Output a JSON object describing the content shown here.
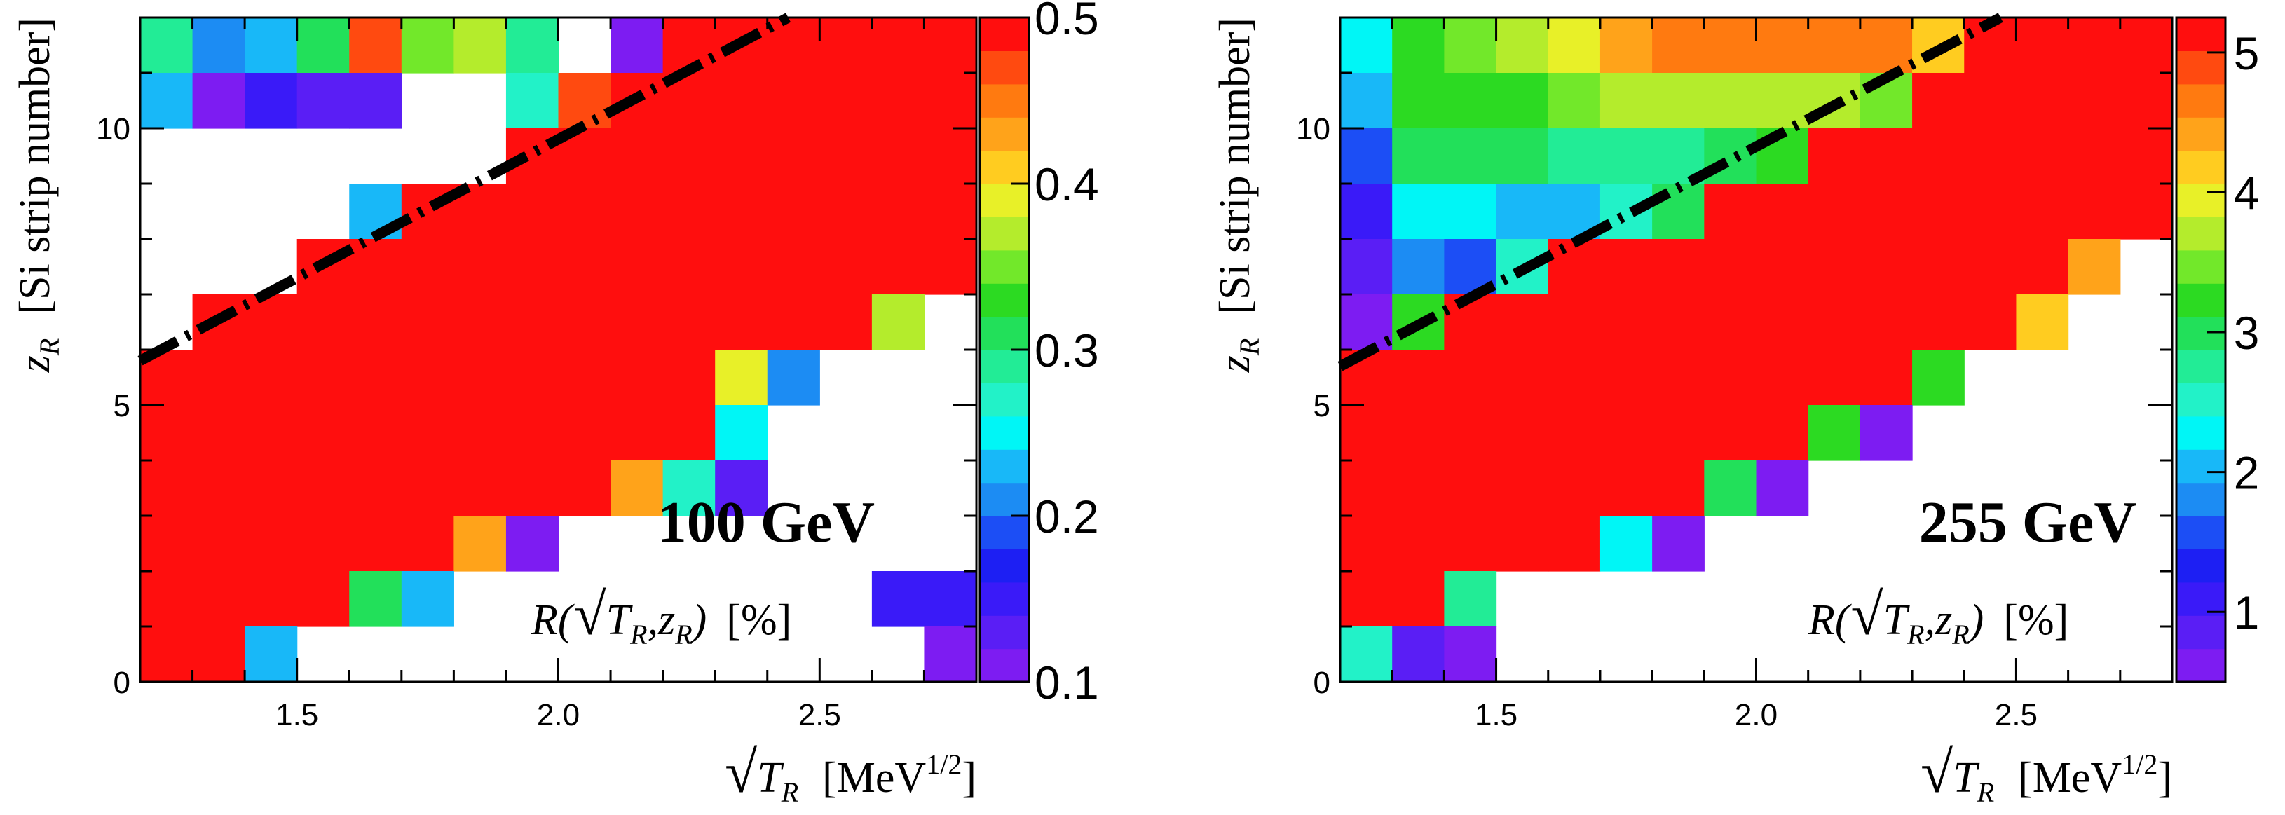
{
  "chart_data": [
    {
      "type": "heatmap",
      "energy_label": "100 GeV",
      "z_label": "R(√T_R, z_R) [%]",
      "z_label_parts": {
        "R": "R(",
        "T": "T",
        "sub_R": "R",
        "comma_z": ",z",
        "sub_R2": "R",
        "close": ")",
        "unit": "[%]"
      },
      "xlabel": "√T_R [MeV^1/2]",
      "xlabel_parts": {
        "T": "T",
        "sub": "R",
        "unit": "[MeV",
        "sup": "1/2",
        "close": "]"
      },
      "ylabel": "z_R [Si strip number]",
      "ylabel_parts": {
        "z": "z",
        "sub": "R",
        "text": "[Si strip number]"
      },
      "xlim": [
        1.2,
        2.8
      ],
      "ylim": [
        0,
        12
      ],
      "x_bin_width": 0.1,
      "x_ticks": [
        "1.5",
        "2.0",
        "2.5"
      ],
      "x_tick_values": [
        1.5,
        2.0,
        2.5
      ],
      "y_ticks": [
        "0",
        "5",
        "10"
      ],
      "y_tick_values": [
        0,
        5,
        10
      ],
      "zlim": [
        0.1,
        0.5
      ],
      "z_ticks": [
        "0.1",
        "0.2",
        "0.3",
        "0.4",
        "0.5"
      ],
      "z_tick_values": [
        0.1,
        0.2,
        0.3,
        0.4,
        0.5
      ],
      "dashed_line": {
        "x": [
          1.2,
          2.44
        ],
        "y": [
          5.8,
          12.0
        ]
      },
      "note": "rows listed from z_R bin 11 (top) down to bin 0; columns start at sqrt(T_R)=1.2 in steps of 0.1; null = empty bin",
      "cells": [
        [
          0.3,
          0.21,
          0.23,
          0.31,
          0.46,
          0.34,
          0.36,
          0.3,
          null,
          0.11,
          0.48,
          0.5,
          0.5,
          0.5,
          0.5,
          0.5
        ],
        [
          0.24,
          0.11,
          0.15,
          0.13,
          0.13,
          null,
          null,
          0.27,
          0.46,
          0.5,
          0.5,
          0.5,
          0.5,
          0.5,
          0.5,
          0.5
        ],
        [
          null,
          null,
          null,
          null,
          null,
          null,
          null,
          0.5,
          0.5,
          0.5,
          0.5,
          0.5,
          0.5,
          0.5,
          0.5,
          0.5
        ],
        [
          null,
          null,
          null,
          null,
          0.23,
          0.5,
          0.5,
          0.5,
          0.5,
          0.5,
          0.5,
          0.5,
          0.5,
          0.5,
          0.5,
          0.5
        ],
        [
          null,
          null,
          null,
          0.5,
          0.5,
          0.5,
          0.5,
          0.5,
          0.5,
          0.5,
          0.5,
          0.5,
          0.5,
          0.5,
          0.5,
          0.5
        ],
        [
          null,
          0.5,
          0.5,
          0.5,
          0.5,
          0.5,
          0.5,
          0.5,
          0.5,
          0.5,
          0.5,
          0.5,
          0.5,
          0.5,
          0.36,
          null
        ],
        [
          0.5,
          0.5,
          0.5,
          0.5,
          0.5,
          0.5,
          0.5,
          0.5,
          0.5,
          0.5,
          0.5,
          0.39,
          0.21,
          null,
          null,
          null
        ],
        [
          0.5,
          0.5,
          0.5,
          0.5,
          0.5,
          0.5,
          0.5,
          0.5,
          0.5,
          0.5,
          0.5,
          0.26,
          null,
          null,
          null,
          null
        ],
        [
          0.5,
          0.5,
          0.5,
          0.5,
          0.5,
          0.5,
          0.5,
          0.5,
          0.5,
          0.44,
          0.27,
          0.13,
          null,
          null,
          null,
          null
        ],
        [
          0.5,
          0.5,
          0.5,
          0.5,
          0.5,
          0.5,
          0.44,
          0.12,
          null,
          null,
          null,
          null,
          null,
          null,
          null,
          null
        ],
        [
          0.5,
          0.5,
          0.5,
          0.5,
          0.31,
          0.22,
          null,
          null,
          null,
          null,
          null,
          null,
          null,
          null,
          0.14,
          0.14
        ],
        [
          0.5,
          0.5,
          0.23,
          null,
          null,
          null,
          null,
          null,
          null,
          null,
          null,
          null,
          null,
          null,
          null,
          0.11
        ]
      ]
    },
    {
      "type": "heatmap",
      "energy_label": "255 GeV",
      "z_label": "R(√T_R, z_R) [%]",
      "z_label_parts": {
        "R": "R(",
        "T": "T",
        "sub_R": "R",
        "comma_z": ",z",
        "sub_R2": "R",
        "close": ")",
        "unit": "[%]"
      },
      "xlabel": "√T_R [MeV^1/2]",
      "xlabel_parts": {
        "T": "T",
        "sub": "R",
        "unit": "[MeV",
        "sup": "1/2",
        "close": "]"
      },
      "ylabel": "z_R [Si strip number]",
      "ylabel_parts": {
        "z": "z",
        "sub": "R",
        "text": "[Si strip number]"
      },
      "xlim": [
        1.2,
        2.8
      ],
      "ylim": [
        0,
        12
      ],
      "x_bin_width": 0.1,
      "x_ticks": [
        "1.5",
        "2.0",
        "2.5"
      ],
      "x_tick_values": [
        1.5,
        2.0,
        2.5
      ],
      "y_ticks": [
        "0",
        "5",
        "10"
      ],
      "y_tick_values": [
        0,
        5,
        10
      ],
      "zlim": [
        0.5,
        5.25
      ],
      "z_ticks": [
        "1",
        "2",
        "3",
        "4",
        "5"
      ],
      "z_tick_values": [
        1,
        2,
        3,
        4,
        5
      ],
      "dashed_line": {
        "x": [
          1.2,
          2.47
        ],
        "y": [
          5.7,
          12.0
        ]
      },
      "note": "rows listed from z_R bin 11 (top) down to bin 0; columns start at sqrt(T_R)=1.2 in steps of 0.1; null = empty bin",
      "cells": [
        [
          2.3,
          3.3,
          3.5,
          3.8,
          4.0,
          4.5,
          4.7,
          4.7,
          4.7,
          4.7,
          4.6,
          4.2,
          5.2,
          5.2,
          5.2,
          5.2
        ],
        [
          2.0,
          3.2,
          3.2,
          3.2,
          3.4,
          3.7,
          3.7,
          3.7,
          3.7,
          3.6,
          3.5,
          5.2,
          5.2,
          5.2,
          5.2,
          5.2
        ],
        [
          1.6,
          3.0,
          3.0,
          2.9,
          2.8,
          2.8,
          2.7,
          3.0,
          3.2,
          5.2,
          5.2,
          5.2,
          5.2,
          5.2,
          5.2,
          5.2
        ],
        [
          1.1,
          2.4,
          2.4,
          2.1,
          2.1,
          2.5,
          3.0,
          5.2,
          5.2,
          5.2,
          5.2,
          5.2,
          5.2,
          5.2,
          5.2,
          5.2
        ],
        [
          0.8,
          1.7,
          1.6,
          2.6,
          5.2,
          5.2,
          5.2,
          5.2,
          5.2,
          5.2,
          5.2,
          5.2,
          5.2,
          5.2,
          4.5,
          null
        ],
        [
          0.6,
          3.2,
          5.2,
          5.2,
          5.2,
          5.2,
          5.2,
          5.2,
          5.2,
          5.2,
          5.2,
          5.2,
          5.2,
          4.1,
          null,
          null
        ],
        [
          5.2,
          5.2,
          5.2,
          5.2,
          5.2,
          5.2,
          5.2,
          5.2,
          5.2,
          5.2,
          5.2,
          3.3,
          null,
          null,
          null,
          null
        ],
        [
          5.2,
          5.2,
          5.2,
          5.2,
          5.2,
          5.2,
          5.2,
          5.2,
          5.2,
          3.3,
          0.7,
          null,
          null,
          null,
          null,
          null
        ],
        [
          5.2,
          5.2,
          5.2,
          5.2,
          5.2,
          5.2,
          5.2,
          2.9,
          0.7,
          null,
          null,
          null,
          null,
          null,
          null,
          null
        ],
        [
          5.2,
          5.2,
          5.2,
          5.2,
          5.2,
          2.4,
          0.7,
          null,
          null,
          null,
          null,
          null,
          null,
          null,
          null,
          null
        ],
        [
          5.2,
          5.2,
          2.8,
          null,
          null,
          null,
          null,
          null,
          null,
          null,
          null,
          null,
          null,
          null,
          null,
          null
        ],
        [
          2.5,
          0.9,
          0.7,
          null,
          null,
          null,
          null,
          null,
          null,
          null,
          null,
          null,
          null,
          null,
          null,
          null
        ]
      ]
    }
  ]
}
